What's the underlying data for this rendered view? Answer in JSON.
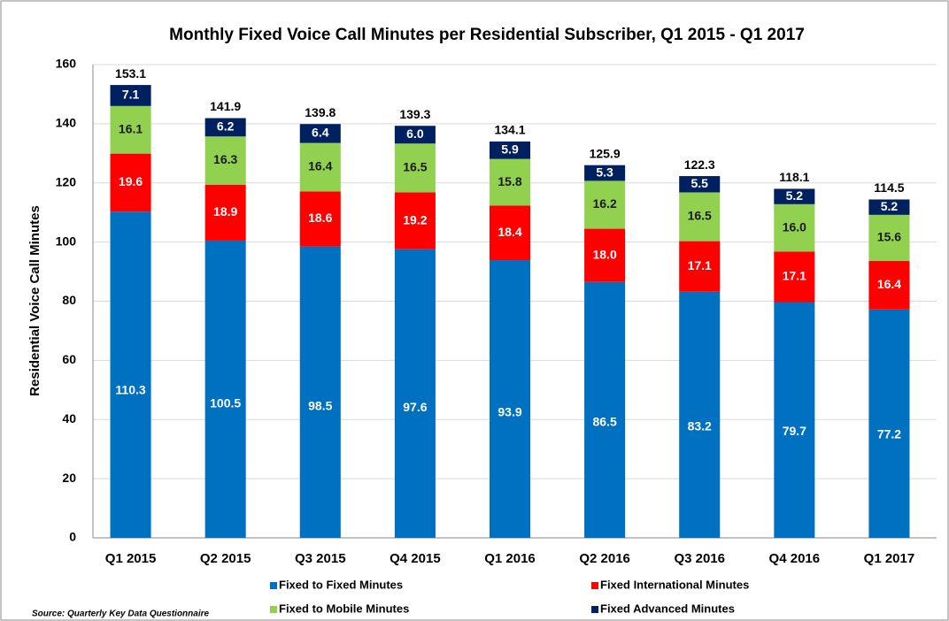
{
  "chart_data": {
    "type": "stacked-bar",
    "title": "Monthly Fixed Voice Call Minutes per Residential Subscriber, Q1 2015 - Q1 2017",
    "y_label": "Residential Voice Call Minutes",
    "source": "Source:  Quarterly Key Data Questionnaire",
    "categories": [
      "Q1 2015",
      "Q2 2015",
      "Q3 2015",
      "Q4 2015",
      "Q1 2016",
      "Q2 2016",
      "Q3 2016",
      "Q4 2016",
      "Q1 2017"
    ],
    "series": [
      {
        "name": "Fixed to Fixed Minutes",
        "color": "#0070c0",
        "label_color": "#ffffff",
        "values": [
          110.3,
          100.5,
          98.5,
          97.6,
          93.9,
          86.5,
          83.2,
          79.7,
          77.2
        ],
        "value_labels": [
          "110.3",
          "100.5",
          "98.5",
          "97.6",
          "93.9",
          "86.5",
          "83.2",
          "79.7",
          "77.2"
        ]
      },
      {
        "name": "Fixed International Minutes",
        "color": "#ff0000",
        "label_color": "#ffffff",
        "values": [
          19.6,
          18.9,
          18.6,
          19.2,
          18.4,
          18.0,
          17.1,
          17.1,
          16.4
        ],
        "value_labels": [
          "19.6",
          "18.9",
          "18.6",
          "19.2",
          "18.4",
          "18.0",
          "17.1",
          "17.1",
          "16.4"
        ]
      },
      {
        "name": "Fixed to Mobile Minutes",
        "color": "#92d050",
        "label_color": "#1a1a1a",
        "values": [
          16.1,
          16.3,
          16.4,
          16.5,
          15.8,
          16.2,
          16.5,
          16.0,
          15.6
        ],
        "value_labels": [
          "16.1",
          "16.3",
          "16.4",
          "16.5",
          "15.8",
          "16.2",
          "16.5",
          "16.0",
          "15.6"
        ]
      },
      {
        "name": "Fixed Advanced Minutes",
        "color": "#002060",
        "label_color": "#ffffff",
        "values": [
          7.1,
          6.2,
          6.4,
          6.0,
          5.9,
          5.3,
          5.5,
          5.2,
          5.2
        ],
        "value_labels": [
          "7.1",
          "6.2",
          "6.4",
          "6.0",
          "5.9",
          "5.3",
          "5.5",
          "5.2",
          "5.2"
        ]
      }
    ],
    "totals": [
      153.1,
      141.9,
      139.8,
      139.3,
      134.1,
      125.9,
      122.3,
      118.1,
      114.5
    ],
    "ylim": [
      0,
      160
    ],
    "yticks": [
      0,
      20,
      40,
      60,
      80,
      100,
      120,
      140,
      160
    ],
    "grid": true
  }
}
